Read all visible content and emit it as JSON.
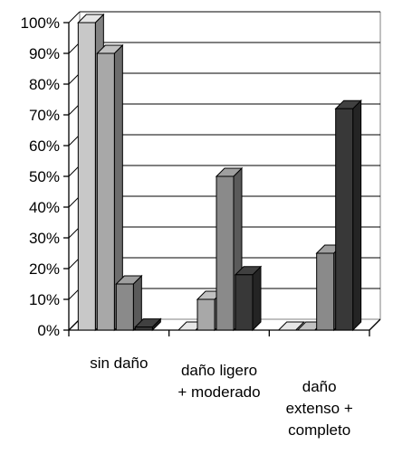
{
  "chart_data": {
    "type": "bar",
    "style": "3d-clustered-column",
    "title": "",
    "xlabel": "",
    "ylabel": "",
    "ylim": [
      0,
      100
    ],
    "y_tick_labels": [
      "0%",
      "10%",
      "20%",
      "30%",
      "40%",
      "50%",
      "60%",
      "70%",
      "80%",
      "90%",
      "100%"
    ],
    "grid": true,
    "legend": "none",
    "categories": [
      [
        "sin daño"
      ],
      [
        "daño ligero",
        "+ moderado"
      ],
      [
        "daño",
        "extenso +",
        "completo"
      ]
    ],
    "series": [
      {
        "values": [
          100,
          0,
          0
        ],
        "color": "#c8c8c8"
      },
      {
        "values": [
          90,
          10,
          0
        ],
        "color": "#a8a8a8"
      },
      {
        "values": [
          15,
          50,
          25
        ],
        "color": "#8a8a8a"
      },
      {
        "values": [
          1,
          18,
          72
        ],
        "color": "#383838"
      }
    ]
  }
}
